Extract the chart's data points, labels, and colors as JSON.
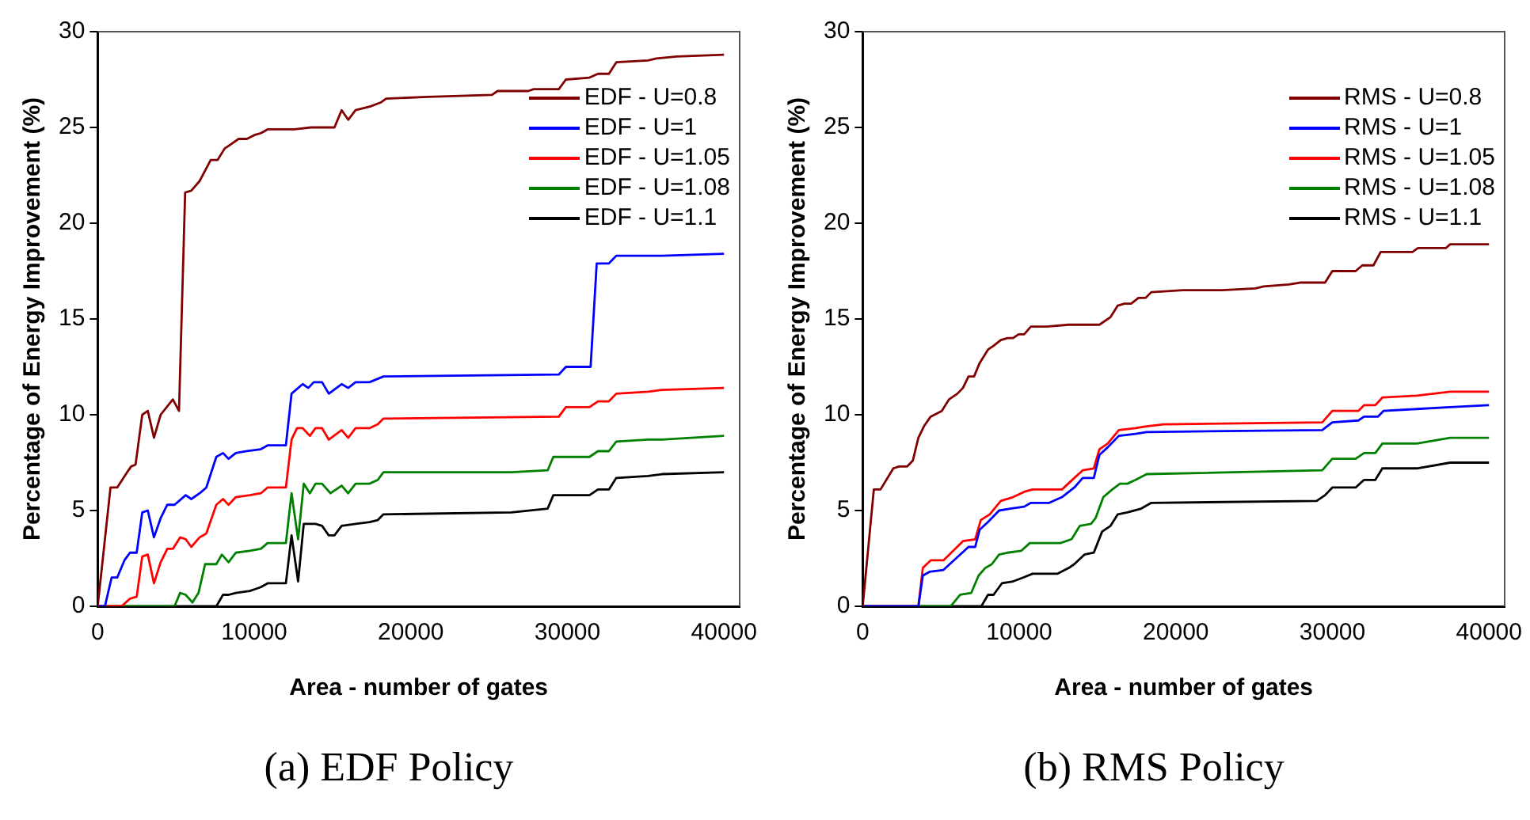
{
  "chart_data": [
    {
      "type": "line",
      "xlabel": "Area - number of gates",
      "ylabel": "Percentage of Energy Improvement (%)",
      "xlim": [
        0,
        41000
      ],
      "ylim": [
        0,
        30
      ],
      "xticks": [
        0,
        10000,
        20000,
        30000,
        40000
      ],
      "yticks": [
        0,
        5,
        10,
        15,
        20,
        25,
        30
      ],
      "legend": "top right",
      "annotations": [
        "(a) EDF Policy"
      ],
      "series": [
        {
          "name": "EDF - U=0.8",
          "color": "#800000",
          "x": [
            0,
            818,
            1245,
            1885,
            2134,
            2419,
            2846,
            3200,
            3593,
            4020,
            4800,
            5193,
            5585,
            5976,
            6510,
            7220,
            7650,
            8110,
            8466,
            9000,
            9530,
            10000,
            10420,
            10850,
            12560,
            13620,
            15120,
            15580,
            16000,
            16470,
            17430,
            18070,
            18420,
            21090,
            25180,
            25540,
            27500,
            27850,
            29450,
            29900,
            31410,
            31950,
            32650,
            33120,
            35150,
            35680,
            37000,
            40000
          ],
          "values": [
            0,
            6.2,
            6.2,
            7,
            7.3,
            7.4,
            10,
            10.2,
            8.8,
            10,
            10.8,
            10.2,
            21.6,
            21.7,
            22.2,
            23.3,
            23.3,
            23.9,
            24.1,
            24.4,
            24.4,
            24.6,
            24.7,
            24.9,
            24.9,
            25,
            25,
            25.9,
            25.4,
            25.9,
            26.1,
            26.3,
            26.5,
            26.6,
            26.7,
            26.9,
            26.9,
            27,
            27,
            27.5,
            27.6,
            27.8,
            27.8,
            28.4,
            28.5,
            28.6,
            28.7,
            28.8
          ]
        },
        {
          "name": "EDF - U=1",
          "color": "#0000ff",
          "x": [
            0,
            462,
            889,
            1245,
            1707,
            2063,
            2490,
            2846,
            3200,
            3593,
            4020,
            4446,
            4909,
            5620,
            5976,
            6510,
            6936,
            7576,
            8003,
            8359,
            8821,
            9530,
            10420,
            10850,
            12020,
            12380,
            13090,
            13450,
            13800,
            14330,
            14760,
            15580,
            16000,
            16470,
            17360,
            18250,
            29450,
            29900,
            31480,
            31870,
            32650,
            33120,
            36030,
            40000
          ],
          "values": [
            0,
            0,
            1.5,
            1.5,
            2.4,
            2.8,
            2.8,
            4.9,
            5,
            3.6,
            4.6,
            5.3,
            5.3,
            5.8,
            5.6,
            5.9,
            6.2,
            7.8,
            8,
            7.7,
            8,
            8.1,
            8.2,
            8.4,
            8.4,
            11.1,
            11.6,
            11.4,
            11.7,
            11.7,
            11.1,
            11.6,
            11.4,
            11.7,
            11.7,
            12,
            12.1,
            12.5,
            12.5,
            17.9,
            17.9,
            18.3,
            18.3,
            18.4
          ]
        },
        {
          "name": "EDF - U=1.05",
          "color": "#ff0000",
          "x": [
            0,
            1530,
            2063,
            2490,
            2846,
            3200,
            3593,
            4020,
            4446,
            4800,
            5264,
            5620,
            5976,
            6510,
            6936,
            7576,
            8003,
            8359,
            8821,
            9710,
            10420,
            10850,
            12020,
            12380,
            12730,
            13090,
            13550,
            13910,
            14330,
            14760,
            15580,
            16000,
            16470,
            17360,
            17890,
            18250,
            29450,
            29900,
            31410,
            31950,
            32650,
            33120,
            35150,
            36030,
            40000
          ],
          "values": [
            0,
            0,
            0.4,
            0.5,
            2.6,
            2.7,
            1.2,
            2.3,
            3,
            3,
            3.6,
            3.5,
            3.1,
            3.6,
            3.8,
            5.3,
            5.6,
            5.3,
            5.7,
            5.8,
            5.9,
            6.2,
            6.2,
            8.7,
            9.3,
            9.3,
            8.9,
            9.3,
            9.3,
            8.7,
            9.2,
            8.8,
            9.3,
            9.3,
            9.5,
            9.8,
            9.9,
            10.4,
            10.4,
            10.7,
            10.7,
            11.1,
            11.2,
            11.3,
            11.4
          ]
        },
        {
          "name": "EDF - U=1.08",
          "color": "#008000",
          "x": [
            0,
            4909,
            5264,
            5620,
            6050,
            6440,
            6860,
            7576,
            7930,
            8359,
            8821,
            9710,
            10420,
            10850,
            12020,
            12380,
            12800,
            13160,
            13550,
            13910,
            14330,
            14870,
            15580,
            16000,
            16470,
            17360,
            17890,
            18250,
            26420,
            28740,
            29100,
            31410,
            31950,
            32650,
            33120,
            35150,
            36030,
            40000
          ],
          "values": [
            0,
            0,
            0.7,
            0.6,
            0.2,
            0.7,
            2.2,
            2.2,
            2.7,
            2.3,
            2.8,
            2.9,
            3,
            3.3,
            3.3,
            5.9,
            3.5,
            6.4,
            5.9,
            6.4,
            6.4,
            5.9,
            6.3,
            5.9,
            6.4,
            6.4,
            6.6,
            7,
            7,
            7.1,
            7.8,
            7.8,
            8.1,
            8.1,
            8.6,
            8.7,
            8.7,
            8.9
          ]
        },
        {
          "name": "EDF - U=1.1",
          "color": "#000000",
          "x": [
            0,
            7576,
            8003,
            8359,
            8821,
            9710,
            10070,
            10420,
            10850,
            12020,
            12380,
            12800,
            13160,
            13910,
            14330,
            14760,
            15120,
            15580,
            16470,
            17360,
            17890,
            18250,
            26420,
            28740,
            29100,
            31410,
            31950,
            32650,
            33120,
            35150,
            36030,
            40000
          ],
          "values": [
            0,
            0,
            0.6,
            0.6,
            0.7,
            0.8,
            0.9,
            1,
            1.2,
            1.2,
            3.7,
            1.3,
            4.3,
            4.3,
            4.2,
            3.7,
            3.7,
            4.2,
            4.3,
            4.4,
            4.5,
            4.8,
            4.9,
            5.1,
            5.8,
            5.8,
            6.1,
            6.1,
            6.7,
            6.8,
            6.9,
            7
          ]
        }
      ]
    },
    {
      "type": "line",
      "xlabel": "Area - number of gates",
      "ylabel": "Percentage of Energy Improvement (%)",
      "xlim": [
        0,
        41000
      ],
      "ylim": [
        0,
        30
      ],
      "xticks": [
        0,
        10000,
        20000,
        30000,
        40000
      ],
      "yticks": [
        0,
        5,
        10,
        15,
        20,
        25,
        30
      ],
      "legend": "top right",
      "annotations": [
        "(b) RMS Policy"
      ],
      "series": [
        {
          "name": "RMS - U=0.8",
          "color": "#800000",
          "x": [
            0,
            711,
            1138,
            1956,
            2312,
            2845,
            3200,
            3557,
            3913,
            4340,
            5050,
            5513,
            6046,
            6402,
            6758,
            7114,
            7470,
            8003,
            8358,
            8820,
            9247,
            9603,
            9959,
            10314,
            10740,
            11737,
            13160,
            15117,
            15830,
            16290,
            16720,
            17150,
            17610,
            18070,
            18430,
            20450,
            22940,
            25080,
            25610,
            27220,
            27930,
            29530,
            29990,
            31480,
            31910,
            32620,
            33080,
            35110,
            35460,
            37240,
            37520,
            40000
          ],
          "values": [
            0,
            6.1,
            6.1,
            7.2,
            7.3,
            7.3,
            7.6,
            8.8,
            9.4,
            9.9,
            10.2,
            10.8,
            11.1,
            11.4,
            12,
            12,
            12.7,
            13.4,
            13.6,
            13.9,
            14,
            14,
            14.2,
            14.2,
            14.6,
            14.6,
            14.7,
            14.7,
            15.1,
            15.7,
            15.8,
            15.8,
            16.1,
            16.1,
            16.4,
            16.5,
            16.5,
            16.6,
            16.7,
            16.8,
            16.9,
            16.9,
            17.5,
            17.5,
            17.8,
            17.8,
            18.5,
            18.5,
            18.7,
            18.7,
            18.9,
            18.9
          ]
        },
        {
          "name": "RMS - U=1",
          "color": "#0000ff",
          "x": [
            0,
            3557,
            3840,
            4268,
            5157,
            6758,
            7185,
            7470,
            8003,
            8713,
            9425,
            10314,
            10740,
            11914,
            12730,
            13515,
            14050,
            14760,
            15117,
            15650,
            16360,
            17430,
            18140,
            29350,
            29990,
            31650,
            32020,
            32900,
            33260,
            35390,
            37520,
            40000
          ],
          "values": [
            0,
            0,
            1.6,
            1.8,
            1.9,
            3.1,
            3.1,
            4,
            4.4,
            5,
            5.1,
            5.2,
            5.4,
            5.4,
            5.7,
            6.2,
            6.7,
            6.7,
            7.9,
            8.3,
            8.9,
            9,
            9.1,
            9.2,
            9.6,
            9.7,
            9.9,
            9.9,
            10.2,
            10.3,
            10.4,
            10.5
          ]
        },
        {
          "name": "RMS - U=1.05",
          "color": "#ff0000",
          "x": [
            0,
            3557,
            3840,
            4340,
            5157,
            6402,
            7185,
            7540,
            8110,
            8820,
            9603,
            10390,
            10850,
            12270,
            12730,
            13515,
            14050,
            14760,
            15117,
            15650,
            16360,
            17430,
            18140,
            19210,
            29350,
            29990,
            31650,
            32020,
            32740,
            33190,
            35390,
            37520,
            40000
          ],
          "values": [
            0,
            0,
            2,
            2.4,
            2.4,
            3.4,
            3.5,
            4.5,
            4.8,
            5.5,
            5.7,
            6,
            6.1,
            6.1,
            6.1,
            6.7,
            7.1,
            7.2,
            8.2,
            8.5,
            9.2,
            9.3,
            9.4,
            9.5,
            9.6,
            10.2,
            10.2,
            10.5,
            10.5,
            10.9,
            11,
            11.2,
            11.2
          ]
        },
        {
          "name": "RMS - U=1.08",
          "color": "#008000",
          "x": [
            0,
            5620,
            6224,
            6935,
            7400,
            7826,
            8250,
            8713,
            9247,
            10135,
            10670,
            12626,
            13340,
            13870,
            14580,
            14870,
            15370,
            15940,
            16430,
            16900,
            17430,
            18140,
            29350,
            29990,
            31480,
            32020,
            32740,
            33190,
            35390,
            37520,
            40000
          ],
          "values": [
            0,
            0,
            0.6,
            0.7,
            1.6,
            2,
            2.2,
            2.7,
            2.8,
            2.9,
            3.3,
            3.3,
            3.5,
            4.2,
            4.3,
            4.6,
            5.7,
            6.1,
            6.4,
            6.4,
            6.6,
            6.9,
            7.1,
            7.7,
            7.7,
            8,
            8,
            8.5,
            8.5,
            8.8,
            8.8
          ]
        },
        {
          "name": "RMS - U=1.1",
          "color": "#000000",
          "x": [
            0,
            7577,
            8003,
            8358,
            8890,
            9603,
            10240,
            10850,
            12450,
            13160,
            13515,
            14160,
            14760,
            15290,
            15830,
            16290,
            16900,
            17790,
            18430,
            28990,
            29530,
            29990,
            31480,
            32020,
            32740,
            33190,
            35390,
            37520,
            40000
          ],
          "values": [
            0,
            0,
            0.6,
            0.6,
            1.2,
            1.3,
            1.5,
            1.7,
            1.7,
            2,
            2.2,
            2.7,
            2.8,
            3.9,
            4.2,
            4.8,
            4.9,
            5.1,
            5.4,
            5.5,
            5.8,
            6.2,
            6.2,
            6.6,
            6.6,
            7.2,
            7.2,
            7.5,
            7.5
          ]
        }
      ]
    }
  ]
}
